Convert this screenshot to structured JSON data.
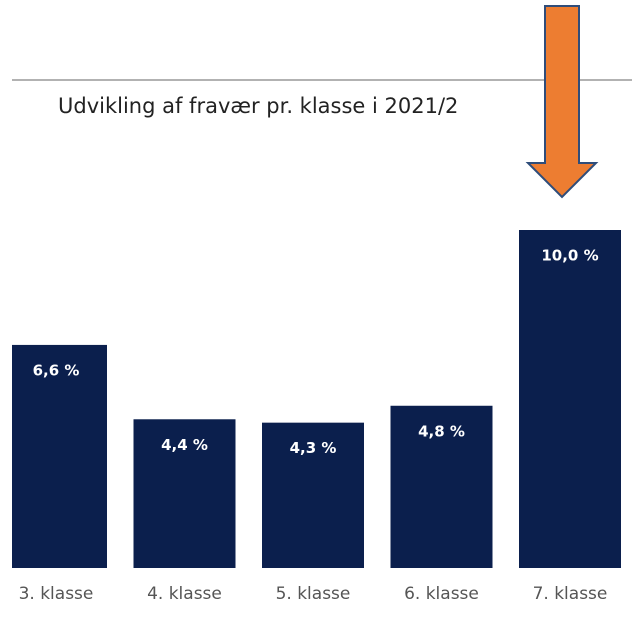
{
  "chart_data": {
    "type": "bar",
    "title": "Udvikling af fravær pr. klasse i 2021/2",
    "categories": [
      "3. klasse",
      "4. klasse",
      "5. klasse",
      "6. klasse",
      "7. klasse"
    ],
    "values": [
      6.6,
      4.4,
      4.3,
      4.8,
      10.0
    ],
    "value_labels": [
      "6,6 %",
      "4,4 %",
      "4,3 %",
      "4,8 %",
      "10,0 %"
    ],
    "color": "#0b1f4d"
  }
}
